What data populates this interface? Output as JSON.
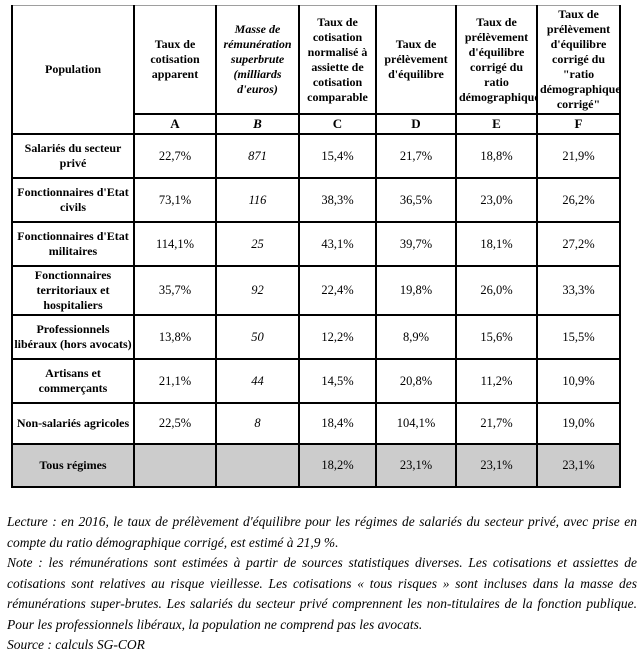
{
  "colors": {
    "table_border": "#000000",
    "outer_edge": "#9e9e9e",
    "highlight_row_bg": "#cccccc",
    "text": "#000000",
    "background": "#ffffff"
  },
  "table": {
    "columns": [
      {
        "label": "Population",
        "letter": "",
        "italic": false
      },
      {
        "label": "Taux de cotisation apparent",
        "letter": "A",
        "italic": false
      },
      {
        "label": "Masse de rémunération superbrute (milliards d'euros)",
        "letter": "B",
        "italic": true
      },
      {
        "label": "Taux de cotisation normalisé à assiette de cotisation comparable",
        "letter": "C",
        "italic": false
      },
      {
        "label": "Taux de prélèvement d'équilibre",
        "letter": "D",
        "italic": false
      },
      {
        "label": "Taux de prélèvement d'équilibre corrigé du ratio démographique",
        "letter": "E",
        "italic": false
      },
      {
        "label": "Taux de prélèvement d'équilibre corrigé du \"ratio démographique corrigé\"",
        "letter": "F",
        "italic": false
      }
    ],
    "rows": [
      {
        "population": "Salariés du secteur privé",
        "values": [
          "22,7%",
          "871",
          "15,4%",
          "21,7%",
          "18,8%",
          "21,9%"
        ],
        "highlight": false
      },
      {
        "population": "Fonctionnaires d'Etat civils",
        "values": [
          "73,1%",
          "116",
          "38,3%",
          "36,5%",
          "23,0%",
          "26,2%"
        ],
        "highlight": false
      },
      {
        "population": "Fonctionnaires d'Etat militaires",
        "values": [
          "114,1%",
          "25",
          "43,1%",
          "39,7%",
          "18,1%",
          "27,2%"
        ],
        "highlight": false
      },
      {
        "population": "Fonctionnaires territoriaux et hospitaliers",
        "values": [
          "35,7%",
          "92",
          "22,4%",
          "19,8%",
          "26,0%",
          "33,3%"
        ],
        "highlight": false
      },
      {
        "population": "Professionnels libéraux (hors avocats)",
        "values": [
          "13,8%",
          "50",
          "12,2%",
          "8,9%",
          "15,6%",
          "15,5%"
        ],
        "highlight": false
      },
      {
        "population": "Artisans et commerçants",
        "values": [
          "21,1%",
          "44",
          "14,5%",
          "20,8%",
          "11,2%",
          "10,9%"
        ],
        "highlight": false
      },
      {
        "population": "Non-salariés agricoles",
        "values": [
          "22,5%",
          "8",
          "18,4%",
          "104,1%",
          "21,7%",
          "19,0%"
        ],
        "highlight": false
      },
      {
        "population": "Tous régimes",
        "values": [
          "",
          "",
          "18,2%",
          "23,1%",
          "23,1%",
          "23,1%"
        ],
        "highlight": true
      }
    ]
  },
  "notes": {
    "lecture": "Lecture : en 2016, le taux de prélèvement d'équilibre pour les régimes de salariés du secteur privé, avec prise en compte du ratio démographique corrigé, est estimé à 21,9 %.",
    "note": "Note : les rémunérations sont estimées à partir de sources statistiques diverses. Les cotisations et assiettes de cotisations sont relatives au risque vieillesse. Les cotisations « tous risques » sont incluses dans la masse des rémunérations super-brutes. Les salariés du secteur privé comprennent les non-titulaires de la fonction publique. Pour les professionnels libéraux, la population ne comprend pas les avocats.",
    "source": "Source : calculs SG-COR"
  }
}
